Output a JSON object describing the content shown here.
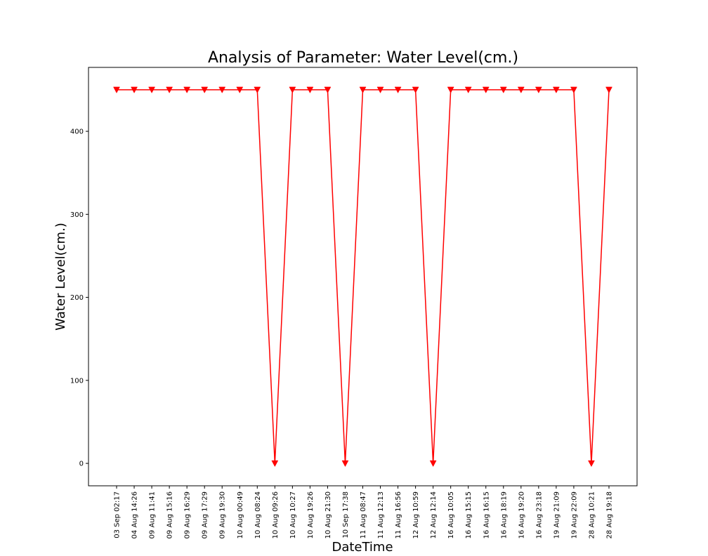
{
  "chart_data": {
    "type": "line",
    "title": "Analysis of Parameter: Water Level(cm.)",
    "xlabel": "DateTime",
    "ylabel": "Water Level(cm.)",
    "ylim": [
      -27,
      477
    ],
    "yticks": [
      0,
      100,
      200,
      300,
      400
    ],
    "grid": false,
    "marker": "triangle-down",
    "color": "#ff0000",
    "categories": [
      "03 Sep 02:17",
      "04 Aug 14:26",
      "09 Aug 11:41",
      "09 Aug 15:16",
      "09 Aug 16:29",
      "09 Aug 17:29",
      "09 Aug 19:30",
      "10 Aug 00:49",
      "10 Aug 08:24",
      "10 Aug 09:26",
      "10 Aug 10:27",
      "10 Aug 19:26",
      "10 Aug 21:30",
      "10 Sep 17:38",
      "11 Aug 08:47",
      "11 Aug 12:13",
      "11 Aug 16:56",
      "12 Aug 10:59",
      "12 Aug 12:14",
      "16 Aug 10:05",
      "16 Aug 15:15",
      "16 Aug 16:15",
      "16 Aug 18:19",
      "16 Aug 19:20",
      "16 Aug 23:18",
      "19 Aug 21:09",
      "19 Aug 22:09",
      "28 Aug 10:21",
      "28 Aug 19:18"
    ],
    "series": [
      {
        "values": [
          450,
          450,
          450,
          450,
          450,
          450,
          450,
          450,
          450,
          0,
          450,
          450,
          450,
          0,
          450,
          450,
          450,
          450,
          0,
          450,
          450,
          450,
          450,
          450,
          450,
          450,
          450,
          0,
          450
        ]
      }
    ]
  }
}
